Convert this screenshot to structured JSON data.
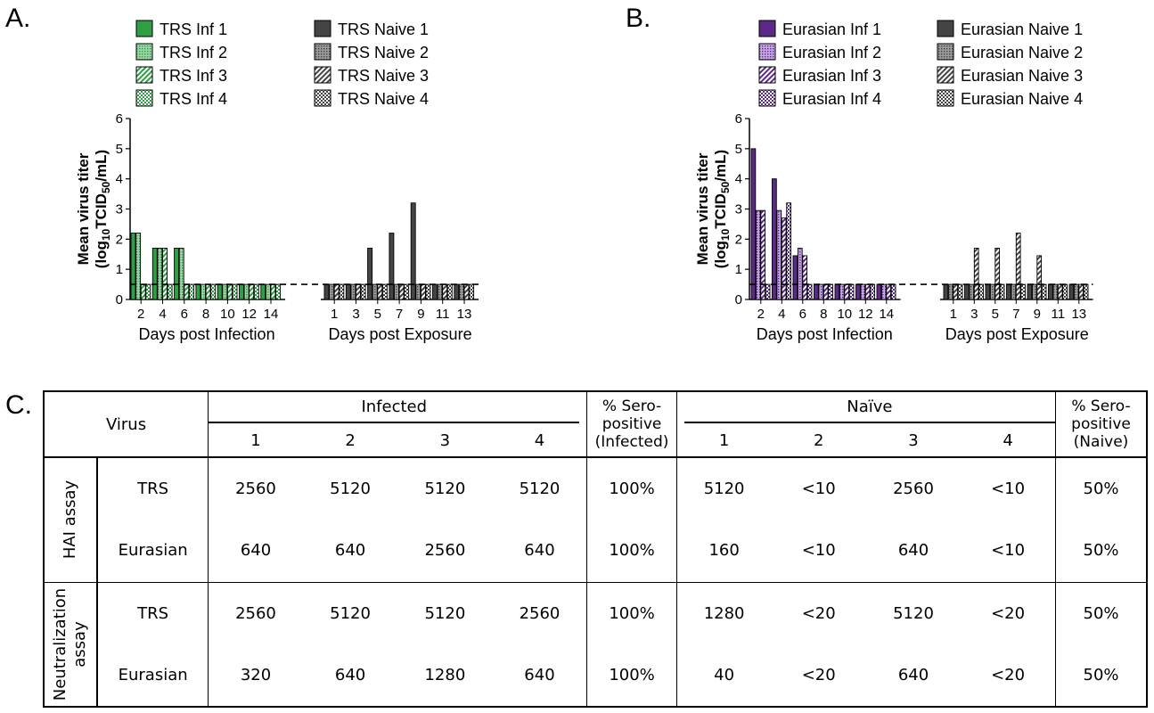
{
  "panels": {
    "a": "A.",
    "b": "B.",
    "c": "C."
  },
  "colors": {
    "trs_infected": "#2f9e44",
    "trs_infected_light": "#9bd5a6",
    "eurasian_infected": "#5b2a86",
    "eurasian_infected_light": "#c7a6e6",
    "naive": "#444444",
    "naive_light": "#9a9a9a"
  },
  "chart_data": [
    {
      "type": "bar",
      "ylabel_line1": "Mean virus titer",
      "ylabel_line2_parts": [
        "(log",
        "10",
        "TCID",
        "50",
        "/mL)"
      ],
      "ylim": [
        0,
        6
      ],
      "yticks": [
        "0",
        "1",
        "2",
        "3",
        "4",
        "5",
        "6"
      ],
      "limit_of_detection": 0.5,
      "infected_group": {
        "xlabel": "Days post Infection",
        "categories": [
          "2",
          "4",
          "6",
          "8",
          "10",
          "12",
          "14"
        ],
        "series": [
          {
            "name": "TRS Inf 1",
            "values": [
              2.2,
              1.7,
              1.7,
              0.5,
              0.5,
              0.5,
              0.5
            ]
          },
          {
            "name": "TRS Inf 2",
            "values": [
              2.2,
              1.7,
              1.7,
              0.5,
              0.5,
              0.5,
              0.5
            ]
          },
          {
            "name": "TRS Inf 3",
            "values": [
              0.5,
              1.7,
              0.5,
              0.5,
              0.5,
              0.5,
              0.5
            ]
          },
          {
            "name": "TRS Inf 4",
            "values": [
              0.5,
              0.5,
              0.5,
              0.5,
              0.5,
              0.5,
              0.5
            ]
          }
        ]
      },
      "naive_group": {
        "xlabel": "Days post Exposure",
        "categories": [
          "1",
          "3",
          "5",
          "7",
          "9",
          "11",
          "13"
        ],
        "series": [
          {
            "name": "TRS Naive 1",
            "values": [
              0.5,
              0.5,
              1.7,
              2.2,
              3.2,
              0.5,
              0.5
            ]
          },
          {
            "name": "TRS Naive 2",
            "values": [
              0.5,
              0.5,
              0.5,
              0.5,
              0.5,
              0.5,
              0.5
            ]
          },
          {
            "name": "TRS Naive 3",
            "values": [
              0.5,
              0.5,
              0.5,
              0.5,
              0.5,
              0.5,
              0.5
            ]
          },
          {
            "name": "TRS Naive 4",
            "values": [
              0.5,
              0.5,
              0.5,
              0.5,
              0.5,
              0.5,
              0.5
            ]
          }
        ]
      }
    },
    {
      "type": "bar",
      "ylabel_line1": "Mean virus titer",
      "ylabel_line2_parts": [
        "(log",
        "10",
        "TCID",
        "50",
        "/mL)"
      ],
      "ylim": [
        0,
        6
      ],
      "yticks": [
        "0",
        "1",
        "2",
        "3",
        "4",
        "5",
        "6"
      ],
      "limit_of_detection": 0.5,
      "infected_group": {
        "xlabel": "Days post Infection",
        "categories": [
          "2",
          "4",
          "6",
          "8",
          "10",
          "12",
          "14"
        ],
        "series": [
          {
            "name": "Eurasian Inf 1",
            "values": [
              5.0,
              4.0,
              1.45,
              0.5,
              0.5,
              0.5,
              0.5
            ]
          },
          {
            "name": "Eurasian Inf 2",
            "values": [
              2.95,
              2.95,
              1.7,
              0.5,
              0.5,
              0.5,
              0.5
            ]
          },
          {
            "name": "Eurasian Inf 3",
            "values": [
              2.95,
              2.7,
              1.45,
              0.5,
              0.5,
              0.5,
              0.5
            ]
          },
          {
            "name": "Eurasian Inf 4",
            "values": [
              0.5,
              3.2,
              0.5,
              0.5,
              0.5,
              0.5,
              0.5
            ]
          }
        ]
      },
      "naive_group": {
        "xlabel": "Days post Exposure",
        "categories": [
          "1",
          "3",
          "5",
          "7",
          "9",
          "11",
          "13"
        ],
        "series": [
          {
            "name": "Eurasian Naive 1",
            "values": [
              0.5,
              0.5,
              0.5,
              0.5,
              0.5,
              0.5,
              0.5
            ]
          },
          {
            "name": "Eurasian Naive 2",
            "values": [
              0.5,
              0.5,
              0.5,
              0.5,
              0.5,
              0.5,
              0.5
            ]
          },
          {
            "name": "Eurasian Naive 3",
            "values": [
              0.5,
              1.7,
              1.7,
              2.2,
              1.45,
              0.5,
              0.5
            ]
          },
          {
            "name": "Eurasian Naive 4",
            "values": [
              0.5,
              0.5,
              0.5,
              0.5,
              0.5,
              0.5,
              0.5
            ]
          }
        ]
      }
    },
    {
      "type": "table",
      "header": {
        "virus": "Virus",
        "infected": "Infected",
        "naive": "Naïve",
        "infected_animals": [
          "1",
          "2",
          "3",
          "4"
        ],
        "naive_animals": [
          "1",
          "2",
          "3",
          "4"
        ],
        "sero_infected": [
          "% Sero-",
          "positive",
          "(Infected)"
        ],
        "sero_naive": [
          "% Sero-",
          "positive",
          "(Naive)"
        ]
      },
      "assays": [
        {
          "label_lines": [
            "HAI assay"
          ],
          "rows": [
            {
              "virus": "TRS",
              "infected": [
                "2560",
                "5120",
                "5120",
                "5120"
              ],
              "sero_infected": "100%",
              "naive": [
                "5120",
                "<10",
                "2560",
                "<10"
              ],
              "sero_naive": "50%"
            },
            {
              "virus": "Eurasian",
              "infected": [
                "640",
                "640",
                "2560",
                "640"
              ],
              "sero_infected": "100%",
              "naive": [
                "160",
                "<10",
                "640",
                "<10"
              ],
              "sero_naive": "50%"
            }
          ]
        },
        {
          "label_lines": [
            "Neutralization",
            "assay"
          ],
          "rows": [
            {
              "virus": "TRS",
              "infected": [
                "2560",
                "5120",
                "5120",
                "2560"
              ],
              "sero_infected": "100%",
              "naive": [
                "1280",
                "<20",
                "5120",
                "<20"
              ],
              "sero_naive": "50%"
            },
            {
              "virus": "Eurasian",
              "infected": [
                "320",
                "640",
                "1280",
                "640"
              ],
              "sero_infected": "100%",
              "naive": [
                "40",
                "<20",
                "640",
                "<20"
              ],
              "sero_naive": "50%"
            }
          ]
        }
      ]
    }
  ]
}
